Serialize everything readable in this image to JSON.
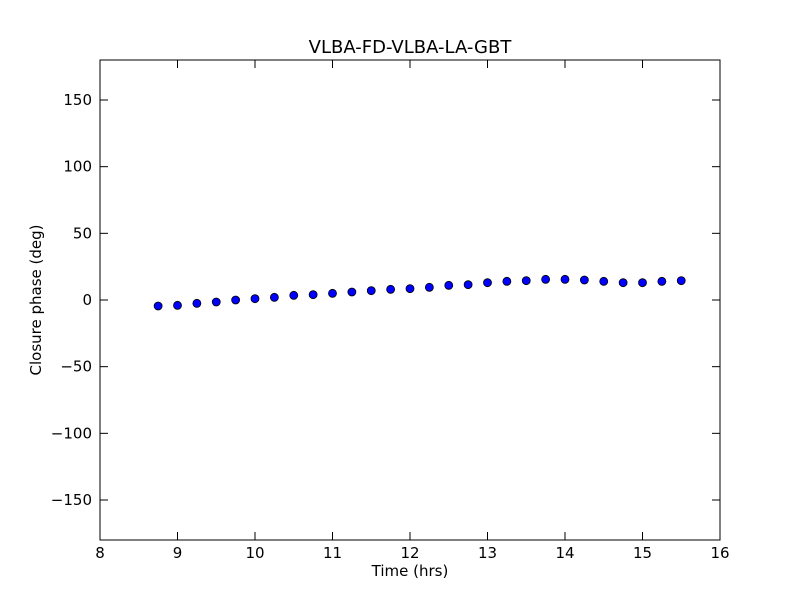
{
  "chart_data": {
    "type": "scatter",
    "title": "VLBA-FD-VLBA-LA-GBT",
    "xlabel": "Time (hrs)",
    "ylabel": "Closure phase (deg)",
    "xlim": [
      8,
      16
    ],
    "ylim": [
      -180,
      180
    ],
    "xticks": [
      8,
      9,
      10,
      11,
      12,
      13,
      14,
      15,
      16
    ],
    "xtick_labels": [
      "8",
      "9",
      "10",
      "11",
      "12",
      "13",
      "14",
      "15",
      "16"
    ],
    "yticks": [
      -150,
      -100,
      -50,
      0,
      50,
      100,
      150
    ],
    "ytick_labels": [
      "−150",
      "−100",
      "−50",
      "0",
      "50",
      "100",
      "150"
    ],
    "grid": false,
    "marker_color": "#0000ff",
    "series": [
      {
        "x": [
          8.75,
          9.0,
          9.25,
          9.5,
          9.75,
          10.0,
          10.25,
          10.5,
          10.75,
          11.0,
          11.25,
          11.5,
          11.75,
          12.0,
          12.25,
          12.5,
          12.75,
          13.0,
          13.25,
          13.5,
          13.75,
          14.0,
          14.25,
          14.5,
          14.75,
          15.0,
          15.25,
          15.5
        ],
        "y": [
          -4.5,
          -4.0,
          -2.5,
          -1.5,
          0.0,
          1.0,
          2.0,
          3.5,
          4.0,
          5.0,
          6.0,
          7.0,
          8.0,
          8.5,
          9.5,
          11.0,
          11.5,
          13.0,
          14.0,
          14.5,
          15.5,
          15.5,
          15.0,
          14.0,
          13.0,
          13.0,
          14.0,
          14.5
        ]
      }
    ]
  }
}
